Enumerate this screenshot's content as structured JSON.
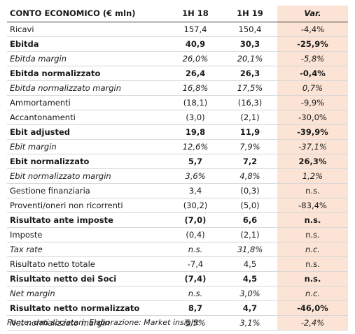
{
  "table": {
    "headers": [
      "CONTO ECONOMICO (€ mln)",
      "1H 18",
      "1H 19",
      "Var."
    ],
    "rows": [
      {
        "label": "Ricavi",
        "h18": "157,4",
        "h19": "150,4",
        "var": "-4,4%",
        "style": "normal"
      },
      {
        "label": "Ebitda",
        "h18": "40,9",
        "h19": "30,3",
        "var": "-25,9%",
        "style": "bold"
      },
      {
        "label": "Ebitda margin",
        "h18": "26,0%",
        "h19": "20,1%",
        "var": "-5,8%",
        "style": "italic"
      },
      {
        "label": "Ebitda normalizzato",
        "h18": "26,4",
        "h19": "26,3",
        "var": "-0,4%",
        "style": "bold"
      },
      {
        "label": "Ebitda normalizzato margin",
        "h18": "16,8%",
        "h19": "17,5%",
        "var": "0,7%",
        "style": "italic"
      },
      {
        "label": "Ammortamenti",
        "h18": "(18,1)",
        "h19": "(16,3)",
        "var": "-9,9%",
        "style": "normal"
      },
      {
        "label": "Accantonamenti",
        "h18": "(3,0)",
        "h19": "(2,1)",
        "var": "-30,0%",
        "style": "normal"
      },
      {
        "label": "Ebit adjusted",
        "h18": "19,8",
        "h19": "11,9",
        "var": "-39,9%",
        "style": "bold"
      },
      {
        "label": "Ebit margin",
        "h18": "12,6%",
        "h19": "7,9%",
        "var": "-37,1%",
        "style": "italic"
      },
      {
        "label": "Ebit normalizzato",
        "h18": "5,7",
        "h19": "7,2",
        "var": "26,3%",
        "style": "bold"
      },
      {
        "label": "Ebit normalizzato margin",
        "h18": "3,6%",
        "h19": "4,8%",
        "var": "1,2%",
        "style": "italic"
      },
      {
        "label": "Gestione finanziaria",
        "h18": "3,4",
        "h19": "(0,3)",
        "var": "n.s.",
        "style": "normal"
      },
      {
        "label": "Proventi/oneri non ricorrenti",
        "h18": "(30,2)",
        "h19": "(5,0)",
        "var": "-83,4%",
        "style": "normal"
      },
      {
        "label": "Risultato ante imposte",
        "h18": "(7,0)",
        "h19": "6,6",
        "var": "n.s.",
        "style": "bold"
      },
      {
        "label": "Imposte",
        "h18": "(0,4)",
        "h19": "(2,1)",
        "var": "n.s.",
        "style": "normal"
      },
      {
        "label": "Tax rate",
        "h18": "n.s.",
        "h19": "31,8%",
        "var": "n.c.",
        "style": "italic"
      },
      {
        "label": "Risultato netto totale",
        "h18": "-7,4",
        "h19": "4,5",
        "var": "n.s.",
        "style": "normal"
      },
      {
        "label": "Risultato netto dei Soci",
        "h18": "(7,4)",
        "h19": "4,5",
        "var": "n.s.",
        "style": "bold"
      },
      {
        "label": "Net margin",
        "h18": "n.s.",
        "h19": "3,0%",
        "var": "n.c.",
        "style": "italic"
      },
      {
        "label": "Risultato netto normalizzato",
        "h18": "8,7",
        "h19": "4,7",
        "var": "-46,0%",
        "style": "bold"
      },
      {
        "label": "Net normalizzato margin",
        "h18": "5,5%",
        "h19": "3,1%",
        "var": "-2,4%",
        "style": "italic"
      }
    ]
  },
  "source": "Fonte: dati societari; Elaborazione: Market insight",
  "colors": {
    "var_column_bg": "#fbe4d5",
    "header_rule": "#333333",
    "row_rule": "#d7d7d7"
  }
}
